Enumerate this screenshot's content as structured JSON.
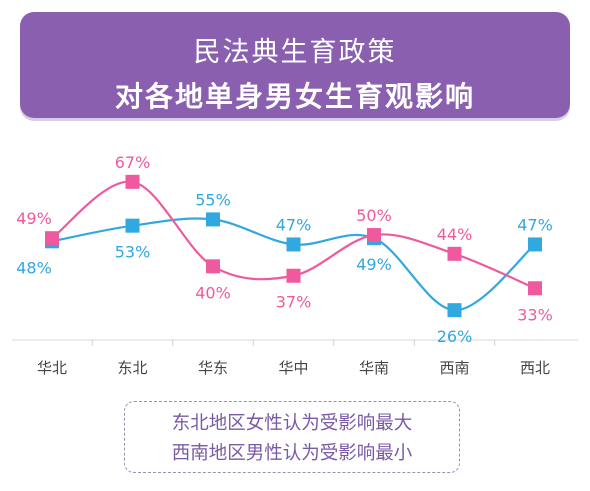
{
  "header": {
    "title": "民法典生育政策",
    "subtitle": "对各地单身男女生育观影响"
  },
  "chart_data": {
    "type": "line",
    "categories": [
      "华北",
      "东北",
      "华东",
      "华中",
      "华南",
      "西南",
      "西北"
    ],
    "series": [
      {
        "color": "#ef5a9e",
        "values": [
          49,
          67,
          40,
          37,
          50,
          44,
          33
        ]
      },
      {
        "color": "#31a8e0",
        "values": [
          48,
          53,
          55,
          47,
          49,
          26,
          47
        ]
      }
    ],
    "value_suffix": "%",
    "grid": false
  },
  "note": {
    "line1": "东北地区女性认为受影响最大",
    "line2": "西南地区男性认为受影响最小"
  }
}
